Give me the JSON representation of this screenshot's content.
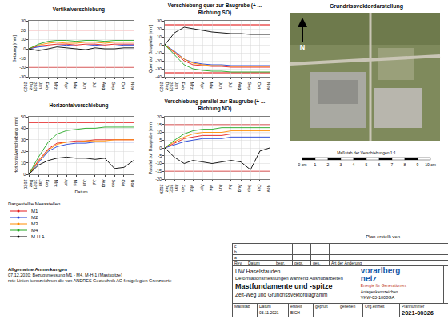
{
  "chart_data": [
    {
      "type": "line",
      "title": "Vertikalverschiebung",
      "y_label": "Setzung [mm]",
      "x": [
        "2020-12",
        "2021-01",
        "2021-02",
        "2021-03",
        "2021-04",
        "2021-05",
        "2021-06",
        "2021-07",
        "2021-08",
        "2021-09",
        "2021-10",
        "2021-11"
      ],
      "xlim": [
        "2020-12",
        "2021-11"
      ],
      "xticks": [
        {
          "value": "2020-12",
          "label": "Dez 2020"
        },
        {
          "value": "2021-01",
          "label": "Jan 2021"
        },
        {
          "value": "2021-02",
          "label": "Feb"
        },
        {
          "value": "2021-03",
          "label": "Mrz"
        },
        {
          "value": "2021-04",
          "label": "Apr"
        },
        {
          "value": "2021-05",
          "label": "Mai"
        },
        {
          "value": "2021-06",
          "label": "Jun"
        },
        {
          "value": "2021-07",
          "label": "Jul"
        },
        {
          "value": "2021-08",
          "label": "Aug"
        },
        {
          "value": "2021-09",
          "label": "Sep"
        },
        {
          "value": "2021-10",
          "label": "Okt"
        },
        {
          "value": "2021-11",
          "label": "Nov"
        }
      ],
      "ylim": [
        -30,
        30
      ],
      "yticks": [
        -30,
        -20,
        -10,
        0,
        10,
        20,
        30
      ],
      "grid": true,
      "limit_lines": [
        20,
        -20
      ],
      "series": [
        {
          "name": "M1",
          "color": "#e41a1c",
          "values": [
            0,
            3,
            4,
            5,
            5,
            4,
            5,
            5,
            4,
            5,
            5,
            5
          ]
        },
        {
          "name": "M2",
          "color": "#1f3fd6",
          "values": [
            0,
            2,
            3,
            3,
            4,
            3,
            3,
            4,
            3,
            3,
            4,
            4
          ]
        },
        {
          "name": "M3",
          "color": "#ff8c00",
          "values": [
            0,
            4,
            6,
            7,
            6,
            6,
            7,
            7,
            6,
            7,
            7,
            7
          ]
        },
        {
          "name": "M4",
          "color": "#22a722",
          "values": [
            0,
            5,
            8,
            9,
            9,
            8,
            9,
            9,
            8,
            9,
            9,
            9
          ]
        },
        {
          "name": "M-H-1",
          "color": "#000000",
          "values": [
            0,
            -2,
            0,
            2,
            1,
            0,
            -1,
            1,
            0,
            0,
            1,
            1
          ]
        }
      ]
    },
    {
      "type": "line",
      "title": "Verschiebung quer zur Baugrube (+ ... Richtung SO)",
      "y_label": "Quer zur Baugrube [mm]",
      "x": [
        "2020-12",
        "2021-01",
        "2021-02",
        "2021-03",
        "2021-04",
        "2021-05",
        "2021-06",
        "2021-07",
        "2021-08",
        "2021-09",
        "2021-10",
        "2021-11"
      ],
      "xlim": [
        "2020-12",
        "2021-11"
      ],
      "xticks": [
        {
          "value": "2020-12",
          "label": "Dez 2020"
        },
        {
          "value": "2021-01",
          "label": "Jan 2021"
        },
        {
          "value": "2021-02",
          "label": "Feb"
        },
        {
          "value": "2021-03",
          "label": "Mrz"
        },
        {
          "value": "2021-04",
          "label": "Apr"
        },
        {
          "value": "2021-05",
          "label": "Mai"
        },
        {
          "value": "2021-06",
          "label": "Jun"
        },
        {
          "value": "2021-07",
          "label": "Jul"
        },
        {
          "value": "2021-08",
          "label": "Aug"
        },
        {
          "value": "2021-09",
          "label": "Sep"
        },
        {
          "value": "2021-10",
          "label": "Okt"
        },
        {
          "value": "2021-11",
          "label": "Nov"
        }
      ],
      "ylim": [
        -40,
        30
      ],
      "yticks": [
        -40,
        -30,
        -20,
        -10,
        0,
        10,
        20,
        30
      ],
      "grid": true,
      "limit_lines": [
        25,
        -35
      ],
      "series": [
        {
          "name": "M1",
          "color": "#e41a1c",
          "values": [
            0,
            -10,
            -20,
            -25,
            -26,
            -27,
            -27,
            -28,
            -28,
            -28,
            -28,
            -28
          ]
        },
        {
          "name": "M2",
          "color": "#1f3fd6",
          "values": [
            0,
            -8,
            -18,
            -22,
            -24,
            -25,
            -25,
            -26,
            -26,
            -26,
            -26,
            -26
          ]
        },
        {
          "name": "M3",
          "color": "#ff8c00",
          "values": [
            0,
            -9,
            -18,
            -23,
            -25,
            -26,
            -26,
            -27,
            -27,
            -27,
            -27,
            -27
          ]
        },
        {
          "name": "M4",
          "color": "#22a722",
          "values": [
            0,
            -12,
            -25,
            -30,
            -32,
            -33,
            -33,
            -34,
            -34,
            -34,
            -34,
            -34
          ]
        },
        {
          "name": "M-H-1",
          "color": "#000000",
          "values": [
            0,
            15,
            22,
            20,
            18,
            16,
            15,
            14,
            14,
            13,
            13,
            13
          ]
        }
      ]
    },
    {
      "type": "line",
      "title": "Horizontalverschiebung",
      "y_label": "Horizontalverschiebung [mm]",
      "x_label": "Datum",
      "x": [
        "2020-12",
        "2021-01",
        "2021-02",
        "2021-03",
        "2021-04",
        "2021-05",
        "2021-06",
        "2021-07",
        "2021-08",
        "2021-09",
        "2021-10",
        "2021-11"
      ],
      "xlim": [
        "2020-12",
        "2021-11"
      ],
      "xticks": [
        {
          "value": "2020-12",
          "label": "Dez 2020"
        },
        {
          "value": "2021-01",
          "label": "Jan 2021"
        },
        {
          "value": "2021-02",
          "label": "Feb"
        },
        {
          "value": "2021-03",
          "label": "Mrz"
        },
        {
          "value": "2021-04",
          "label": "Apr"
        },
        {
          "value": "2021-05",
          "label": "Mai"
        },
        {
          "value": "2021-06",
          "label": "Jun"
        },
        {
          "value": "2021-07",
          "label": "Jul"
        },
        {
          "value": "2021-08",
          "label": "Aug"
        },
        {
          "value": "2021-09",
          "label": "Sep"
        },
        {
          "value": "2021-10",
          "label": "Okt"
        },
        {
          "value": "2021-11",
          "label": "Nov"
        }
      ],
      "ylim": [
        0,
        50
      ],
      "yticks": [
        0,
        10,
        20,
        30,
        40,
        50
      ],
      "grid": true,
      "limit_lines": [
        45
      ],
      "series": [
        {
          "name": "M1",
          "color": "#e41a1c",
          "values": [
            0,
            12,
            22,
            27,
            28,
            29,
            29,
            30,
            30,
            30,
            30,
            30
          ]
        },
        {
          "name": "M2",
          "color": "#1f3fd6",
          "values": [
            0,
            10,
            20,
            24,
            26,
            27,
            27,
            28,
            28,
            28,
            28,
            28
          ]
        },
        {
          "name": "M3",
          "color": "#ff8c00",
          "values": [
            0,
            11,
            21,
            26,
            28,
            28,
            29,
            29,
            29,
            30,
            30,
            30
          ]
        },
        {
          "name": "M4",
          "color": "#22a722",
          "values": [
            0,
            15,
            28,
            35,
            38,
            39,
            40,
            40,
            41,
            41,
            41,
            41
          ]
        },
        {
          "name": "M-H-1",
          "color": "#000000",
          "values": [
            0,
            8,
            12,
            14,
            15,
            14,
            14,
            13,
            14,
            5,
            6,
            12
          ]
        }
      ]
    },
    {
      "type": "line",
      "title": "Verschiebung parallel zur Baugrube (+ ... Richtung NO)",
      "y_label": "Parallel zur Baugrube [mm]",
      "x": [
        "2020-12",
        "2021-01",
        "2021-02",
        "2021-03",
        "2021-04",
        "2021-05",
        "2021-06",
        "2021-07",
        "2021-08",
        "2021-09",
        "2021-10",
        "2021-11"
      ],
      "xlim": [
        "2020-12",
        "2021-11"
      ],
      "xticks": [
        {
          "value": "2020-12",
          "label": "Dez 2020"
        },
        {
          "value": "2021-01",
          "label": "Jan 2021"
        },
        {
          "value": "2021-02",
          "label": "Feb"
        },
        {
          "value": "2021-03",
          "label": "Mrz"
        },
        {
          "value": "2021-04",
          "label": "Apr"
        },
        {
          "value": "2021-05",
          "label": "Mai"
        },
        {
          "value": "2021-06",
          "label": "Jun"
        },
        {
          "value": "2021-07",
          "label": "Jul"
        },
        {
          "value": "2021-08",
          "label": "Aug"
        },
        {
          "value": "2021-09",
          "label": "Sep"
        },
        {
          "value": "2021-10",
          "label": "Okt"
        },
        {
          "value": "2021-11",
          "label": "Nov"
        }
      ],
      "ylim": [
        -20,
        20
      ],
      "yticks": [
        -20,
        -15,
        -10,
        -5,
        0,
        5,
        10,
        15,
        20
      ],
      "grid": true,
      "limit_lines": [
        15,
        -15
      ],
      "series": [
        {
          "name": "M1",
          "color": "#e41a1c",
          "values": [
            0,
            3,
            6,
            7,
            8,
            8,
            8,
            9,
            9,
            9,
            9,
            9
          ]
        },
        {
          "name": "M2",
          "color": "#1f3fd6",
          "values": [
            0,
            2,
            4,
            5,
            6,
            6,
            6,
            7,
            7,
            7,
            7,
            7
          ]
        },
        {
          "name": "M3",
          "color": "#ff8c00",
          "values": [
            0,
            4,
            7,
            9,
            10,
            10,
            10,
            11,
            11,
            11,
            11,
            11
          ]
        },
        {
          "name": "M4",
          "color": "#22a722",
          "values": [
            0,
            5,
            9,
            11,
            12,
            12,
            13,
            13,
            13,
            13,
            13,
            13
          ]
        },
        {
          "name": "M-H-1",
          "color": "#000000",
          "values": [
            0,
            -6,
            -10,
            -8,
            -9,
            -10,
            -9,
            -8,
            -9,
            -14,
            -2,
            0
          ]
        }
      ]
    }
  ],
  "map": {
    "title": "Grundrissvektordarstellung",
    "north": "N",
    "scale_title": "Maßstab der Verschiebungen 1:1",
    "scale_labels": [
      "0 cm",
      "1",
      "2",
      "3",
      "4",
      "5",
      "6",
      "7",
      "8",
      "9",
      "10 cm"
    ]
  },
  "legend_box": {
    "title": "Dargestellte Messstellen"
  },
  "notes": {
    "title": "Allgemeine Anmerkungen",
    "lines": [
      "07.12.2020: Bezugsmessung M1 - M4, M-H-1 (Mastspitze)",
      "rote Linien kennzeichnen die von ANDRES Geotechnik AG festgelegten Grenzwerte"
    ]
  },
  "credit": "Plan erstellt von",
  "title_block": {
    "revision_rows": [
      "c",
      "b",
      "a"
    ],
    "revision_header": [
      "Rev.",
      "Datum",
      "bear.",
      "gepr.",
      "ges.",
      "Art der Änderung"
    ],
    "project": "UW Haselstauden",
    "subject": "Deformationsmessungen während Aushubarbeiten",
    "title": "Mastfundamente und -spitze",
    "subtitle": "Zeit-Weg und Grundrissvektordiagramm",
    "logo": [
      "vorarlberg",
      "netz"
    ],
    "slogan": "Energie für Generationen.",
    "id_label": "Anlagenkennzeichen",
    "id": "VKW-03-1008GA",
    "footer": [
      {
        "label": "Maßstab"
      },
      {
        "label": "Datum",
        "value": "03.11.2021"
      },
      {
        "label": "erstellt",
        "value": "BICH"
      },
      {
        "label": "geprüft"
      },
      {
        "label": "gesehen"
      },
      {
        "label": "Org.einheit"
      },
      {
        "label": "Plannummer",
        "value": "2021-00326"
      }
    ]
  }
}
